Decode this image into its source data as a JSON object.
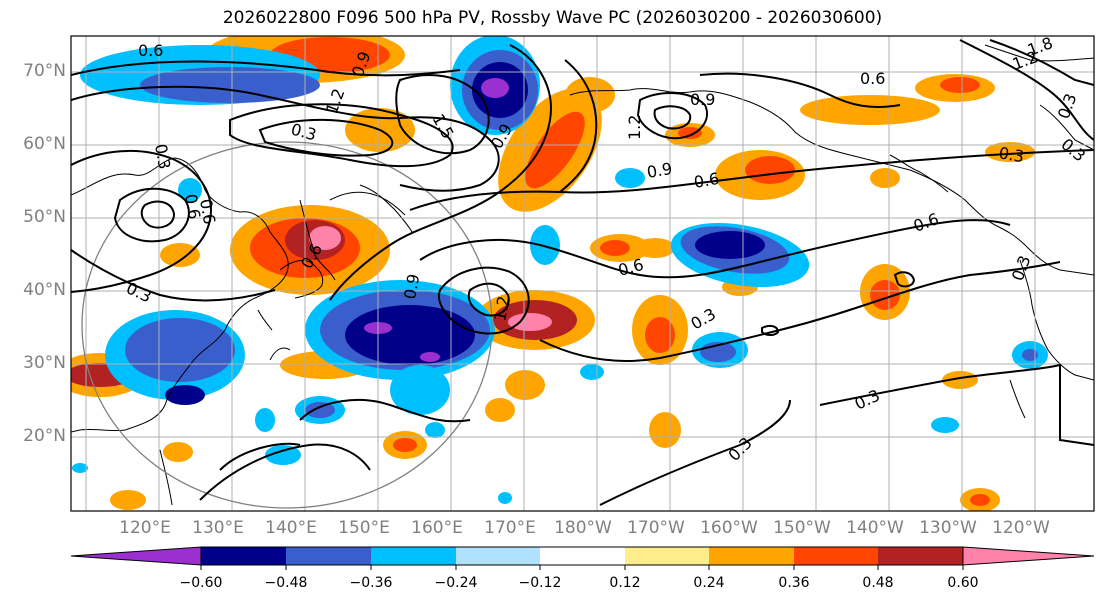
{
  "title": "2026022800 F096 500 hPa PV, Rossby Wave PC (2026030200 - 2026030600)",
  "lat_labels": [
    "70°N",
    "60°N",
    "50°N",
    "40°N",
    "30°N",
    "20°N"
  ],
  "lon_labels": [
    "120°E",
    "130°E",
    "140°E",
    "150°E",
    "160°E",
    "170°E",
    "180°W",
    "170°W",
    "160°W",
    "150°W",
    "140°W",
    "130°W",
    "120°W"
  ],
  "colorbar": {
    "colors": [
      "#9b30d0",
      "#00008b",
      "#3a5fcd",
      "#00bfff",
      "#b0e2ff",
      "#ffffff",
      "#ffec8b",
      "#ffa500",
      "#ff4500",
      "#b22222",
      "#ff82ab"
    ],
    "ticks": [
      "−0.60",
      "−0.48",
      "−0.36",
      "−0.24",
      "−0.12",
      "0.12",
      "0.24",
      "0.36",
      "0.48",
      "0.60"
    ]
  },
  "contour_labels": [
    "0.6",
    "0.9",
    "1.2",
    "1.5",
    "0.3",
    "0.3",
    "0.6",
    "0.9",
    "0.6",
    "0.6",
    "0.3",
    "0.3",
    "0.3",
    "0.3",
    "0.3",
    "0.6",
    "0.6",
    "0.3",
    "0.3",
    "0.9",
    "1.2",
    "0.6",
    "1.8",
    "1.2",
    "0.3",
    "0.9",
    "1.2",
    "0.9",
    "0.6"
  ]
}
